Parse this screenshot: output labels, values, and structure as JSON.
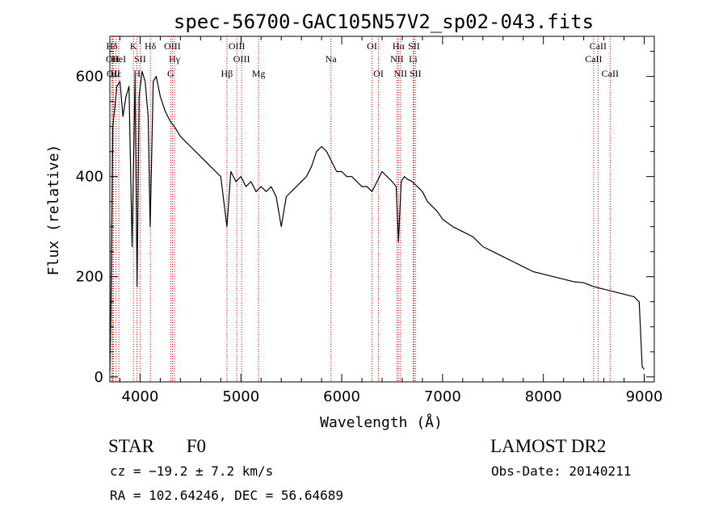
{
  "chart_data": {
    "type": "line",
    "title": "spec-56700-GAC105N57V2_sp02-043.fits",
    "xlabel": "Wavelength (Å)",
    "ylabel": "Flux (relative)",
    "xlim": [
      3700,
      9100
    ],
    "ylim": [
      -10,
      680
    ],
    "x_ticks": [
      4000,
      5000,
      6000,
      7000,
      8000,
      9000
    ],
    "y_ticks": [
      0,
      200,
      400,
      600
    ],
    "series": [
      {
        "x": [
          3700,
          3710,
          3720,
          3730,
          3750,
          3770,
          3800,
          3830,
          3860,
          3890,
          3920,
          3950,
          3970,
          3990,
          4020,
          4050,
          4080,
          4100,
          4130,
          4160,
          4200,
          4250,
          4300,
          4340,
          4400,
          4450,
          4500,
          4550,
          4600,
          4650,
          4700,
          4750,
          4800,
          4861,
          4900,
          4950,
          5000,
          5050,
          5100,
          5150,
          5200,
          5250,
          5300,
          5350,
          5400,
          5450,
          5500,
          5550,
          5600,
          5650,
          5700,
          5750,
          5800,
          5850,
          5900,
          5950,
          6000,
          6050,
          6100,
          6150,
          6200,
          6250,
          6300,
          6350,
          6400,
          6450,
          6500,
          6540,
          6563,
          6590,
          6620,
          6650,
          6700,
          6750,
          6800,
          6850,
          6900,
          6950,
          7000,
          7100,
          7200,
          7300,
          7400,
          7500,
          7600,
          7700,
          7800,
          7900,
          8000,
          8100,
          8200,
          8300,
          8400,
          8500,
          8600,
          8700,
          8800,
          8900,
          8950,
          8980,
          9000
        ],
        "y": [
          10,
          130,
          320,
          500,
          540,
          580,
          590,
          520,
          560,
          580,
          260,
          600,
          180,
          560,
          610,
          590,
          520,
          300,
          590,
          600,
          560,
          530,
          510,
          500,
          480,
          470,
          460,
          450,
          440,
          430,
          420,
          410,
          400,
          300,
          410,
          390,
          400,
          380,
          390,
          370,
          380,
          370,
          380,
          360,
          300,
          360,
          370,
          380,
          390,
          400,
          420,
          450,
          460,
          450,
          430,
          410,
          410,
          400,
          400,
          390,
          380,
          380,
          370,
          390,
          410,
          400,
          390,
          380,
          270,
          390,
          400,
          395,
          390,
          380,
          370,
          350,
          340,
          330,
          315,
          300,
          290,
          280,
          260,
          250,
          240,
          230,
          220,
          210,
          205,
          200,
          195,
          190,
          188,
          180,
          175,
          170,
          165,
          160,
          150,
          20,
          15
        ]
      }
    ],
    "spectral_lines": [
      {
        "label": "Hδ",
        "x": 3720,
        "row": 1
      },
      {
        "label": "OII",
        "x": 3727,
        "row": 2
      },
      {
        "label": "OII",
        "x": 3735,
        "row": 3
      },
      {
        "label": "Hε",
        "x": 3760,
        "row": 3
      },
      {
        "label": "HeI",
        "x": 3789,
        "row": 2
      },
      {
        "label": "K",
        "x": 3934,
        "row": 1
      },
      {
        "label": "SII",
        "x": 4000,
        "row": 2
      },
      {
        "label": "H",
        "x": 3969,
        "row": 3
      },
      {
        "label": "Hδ",
        "x": 4102,
        "row": 1
      },
      {
        "label": "OIII",
        "x": 4320,
        "row": 1
      },
      {
        "label": "Hγ",
        "x": 4341,
        "row": 2
      },
      {
        "label": "G",
        "x": 4304,
        "row": 3
      },
      {
        "label": "Hβ",
        "x": 4861,
        "row": 3
      },
      {
        "label": "OIII",
        "x": 4959,
        "row": 1
      },
      {
        "label": "OIII",
        "x": 5007,
        "row": 2
      },
      {
        "label": "Mg",
        "x": 5175,
        "row": 3
      },
      {
        "label": "Na",
        "x": 5893,
        "row": 2
      },
      {
        "label": "OI",
        "x": 6300,
        "row": 1
      },
      {
        "label": "OI",
        "x": 6364,
        "row": 3
      },
      {
        "label": "Hα",
        "x": 6563,
        "row": 1
      },
      {
        "label": "NII",
        "x": 6548,
        "row": 2
      },
      {
        "label": "NII",
        "x": 6583,
        "row": 3
      },
      {
        "label": "SII",
        "x": 6716,
        "row": 1
      },
      {
        "label": "Li",
        "x": 6708,
        "row": 2
      },
      {
        "label": "SII",
        "x": 6731,
        "row": 3
      },
      {
        "label": "CaII",
        "x": 8542,
        "row": 1
      },
      {
        "label": "CaII",
        "x": 8498,
        "row": 2
      },
      {
        "label": "CaII",
        "x": 8662,
        "row": 3
      }
    ]
  },
  "info": {
    "object_type": "STAR",
    "subclass": "F0",
    "survey": "LAMOST DR2",
    "velocity": "cz = −19.2 ± 7.2 km/s",
    "obs_date": "Obs-Date: 20140211",
    "coords": "RA = 102.64246, DEC =  56.64689"
  },
  "colors": {
    "axis": "#000000",
    "line": "#000000",
    "marker": "#cc0000"
  }
}
